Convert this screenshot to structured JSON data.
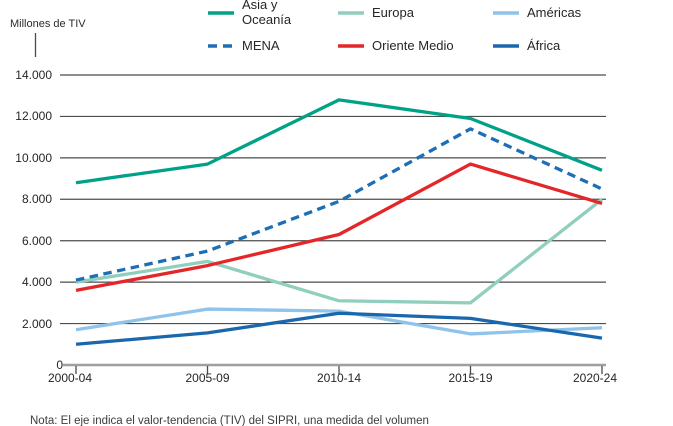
{
  "chart_data": {
    "type": "line",
    "ylabel": "Millones de TIV",
    "categories": [
      "2000-04",
      "2005-09",
      "2010-14",
      "2015-19",
      "2020-24"
    ],
    "y_tick_labels": [
      "0",
      "2.000",
      "4.000",
      "6.000",
      "8.000",
      "10.000",
      "12.000",
      "14.000"
    ],
    "ylim": [
      0,
      14000
    ],
    "grid": "horizontal",
    "legend_position": "top",
    "series": [
      {
        "name": "Asia y Oceanía",
        "legend_label": "Asia y\nOceanía",
        "color": "#00a287",
        "dash": false,
        "values": [
          8800,
          9700,
          12800,
          11900,
          9400
        ]
      },
      {
        "name": "Europa",
        "color": "#90cebe",
        "dash": false,
        "values": [
          4000,
          5000,
          3100,
          3000,
          8000
        ]
      },
      {
        "name": "Américas",
        "color": "#8fc3e9",
        "dash": false,
        "values": [
          1700,
          2700,
          2600,
          1500,
          1800
        ]
      },
      {
        "name": "MENA",
        "color": "#1d6eb5",
        "dash": true,
        "values": [
          4100,
          5500,
          7900,
          11400,
          8500
        ]
      },
      {
        "name": "Oriente Medio",
        "color": "#e52629",
        "dash": false,
        "values": [
          3600,
          4800,
          6300,
          9700,
          7800
        ]
      },
      {
        "name": "África",
        "color": "#1a67ae",
        "dash": false,
        "values": [
          1000,
          1550,
          2500,
          2250,
          1300
        ]
      }
    ],
    "note": "Nota: El eje indica el valor-tendencia (TIV) del SIPRI, una medida del volumen"
  },
  "colors": {
    "gridline": "#4c4c4c",
    "axis": "#9f9f9f",
    "tick": "#4b4b4b",
    "text": "#262626"
  }
}
